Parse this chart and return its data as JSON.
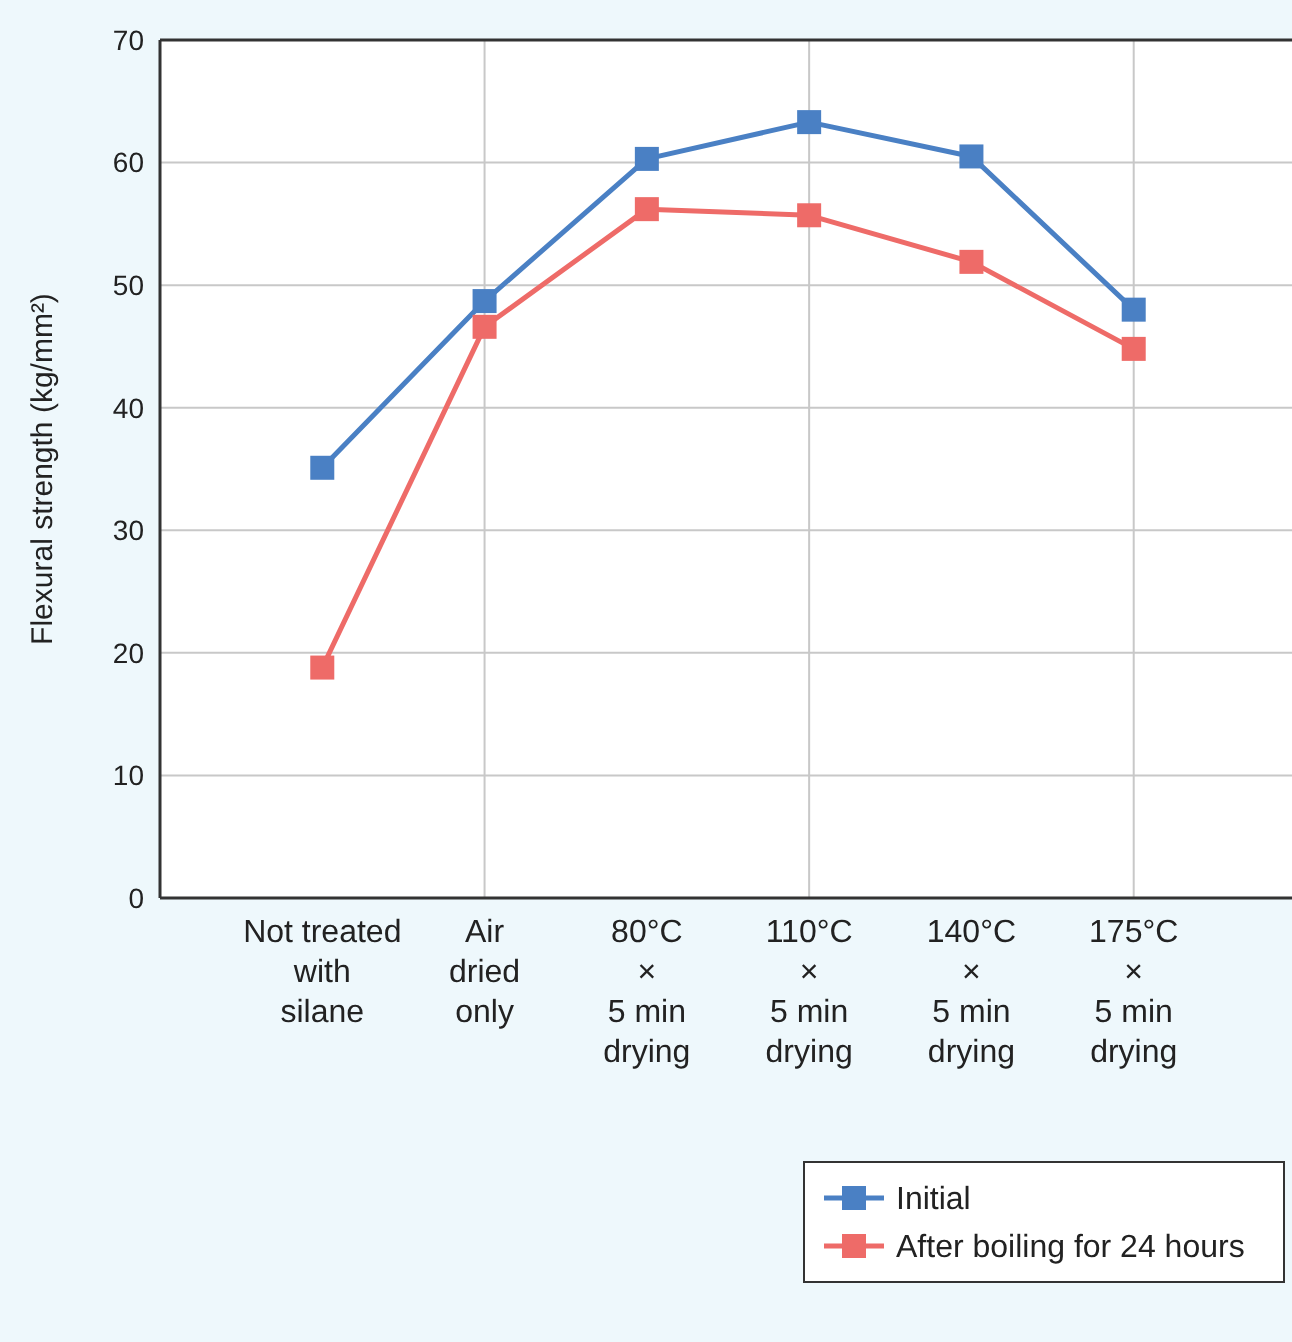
{
  "chart_data": {
    "type": "line",
    "ylabel": "Flexural strength (kg/mm²)",
    "categories": [
      "Not treated\nwith\nsilane",
      "Air\ndried\nonly",
      "80°C\n×\n5 min\ndrying",
      "110°C\n×\n5 min\ndrying",
      "140°C\n×\n5 min\ndrying",
      "175°C\n×\n5 min\ndrying"
    ],
    "series": [
      {
        "name": "Initial",
        "color": "#4a80c4",
        "values": [
          35.1,
          48.7,
          60.3,
          63.3,
          60.5,
          48.0
        ]
      },
      {
        "name": "After boiling for 24 hours",
        "color": "#ee6b68",
        "values": [
          18.8,
          46.6,
          56.2,
          55.7,
          51.9,
          44.8
        ]
      }
    ],
    "ylim": [
      0,
      70
    ],
    "yticks": [
      0,
      10,
      20,
      30,
      40,
      50,
      60,
      70
    ],
    "grid": true,
    "legend": "bottom right",
    "marker": "square",
    "line_style": "solid"
  }
}
